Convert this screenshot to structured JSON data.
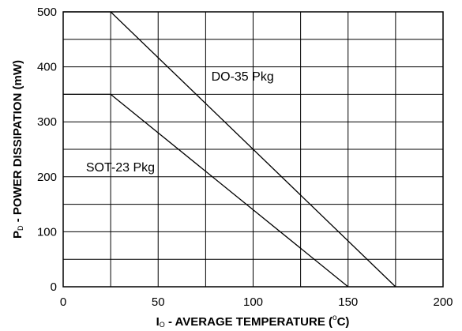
{
  "chart_data": {
    "type": "line",
    "xlim": [
      0,
      200
    ],
    "ylim": [
      0,
      500
    ],
    "x_ticks": [
      "0",
      "50",
      "100",
      "150",
      "200"
    ],
    "y_ticks": [
      "0",
      "100",
      "200",
      "300",
      "400",
      "500"
    ],
    "grid": true,
    "xlabel": {
      "prefix": "I",
      "subscript": "O",
      "main": " - AVERAGE TEMPERATURE  (",
      "superscript": "o",
      "suffix": "C)"
    },
    "ylabel": {
      "prefix": "P",
      "subscript": "D",
      "main": " - POWER DISSIPATION (mW)"
    },
    "series": [
      {
        "name": "DO-35 Pkg",
        "points": [
          [
            0,
            500
          ],
          [
            25,
            500
          ],
          [
            175,
            0
          ]
        ]
      },
      {
        "name": "SOT-23 Pkg",
        "points": [
          [
            0,
            350
          ],
          [
            25,
            350
          ],
          [
            150,
            0
          ]
        ]
      }
    ],
    "colors": {
      "line": "#000000",
      "grid": "#000000",
      "background": "#ffffff"
    }
  }
}
